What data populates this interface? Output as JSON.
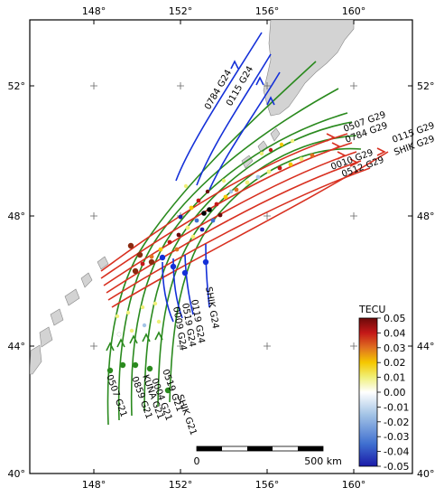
{
  "map": {
    "lon_range": [
      145,
      162
    ],
    "lat_range": [
      40,
      54.5
    ],
    "lon_ticks": [
      "148°",
      "152°",
      "156°",
      "160°"
    ],
    "lat_ticks": [
      "40°",
      "44°",
      "48°",
      "52°"
    ],
    "land_color": "#d3d3d3",
    "grid": "cross markers"
  },
  "colorbar": {
    "title": "TECU",
    "ticks": [
      "0.05",
      "0.04",
      "0.03",
      "0.02",
      "0.01",
      "0.00",
      "-0.01",
      "-0.02",
      "-0.03",
      "-0.04",
      "-0.05"
    ],
    "range": [
      -0.05,
      0.05
    ],
    "colors": [
      "#1a1aa8",
      "#3f6fd0",
      "#a4c4e6",
      "#ffffff",
      "#f0f07a",
      "#f5c800",
      "#e07020",
      "#c41818",
      "#6b0a0a"
    ]
  },
  "scalebar": {
    "start_label": "0",
    "end_label": "500 km"
  },
  "track_colors": {
    "G24": "#1430d8",
    "G29": "#d83020",
    "G21": "#2a8a1e",
    "marker": "#8a2a10"
  },
  "track_labels": {
    "g24_north": [
      "0784 G24",
      "0115 G24"
    ],
    "g24_south": [
      "0119 G24",
      "0519 G24",
      "0009 G24",
      "SHIK G24"
    ],
    "g29": [
      "0507 G29",
      "0784 G29",
      "0115 G29",
      "0010 G29",
      "0512 G29",
      "SHIK G29"
    ],
    "g21": [
      "0507 G21",
      "0859 G21",
      "KUNA G21",
      "0004 G21",
      "0519 G21",
      "SHIK G21"
    ]
  }
}
